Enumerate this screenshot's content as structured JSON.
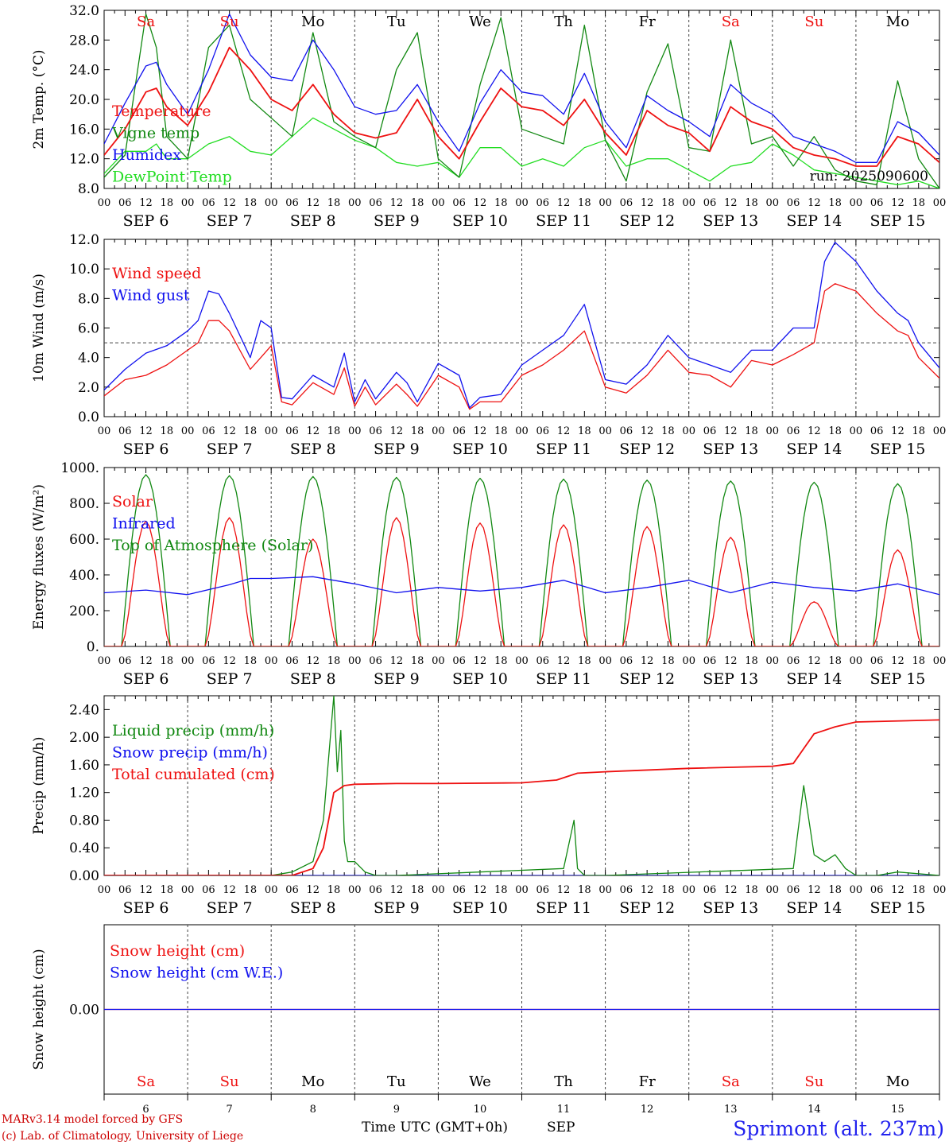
{
  "run_label": "run: 2025090600",
  "footer": {
    "model": "MARv3.14 model forced by GFS",
    "copyright": "(c) Lab. of Climatology, University of Liege",
    "xlabel": "Time UTC (GMT+0h)",
    "month": "SEP",
    "station": "Sprimont (alt. 237m)"
  },
  "days": [
    {
      "abbr": "Sa",
      "date": "SEP  6",
      "num": "6",
      "weekend": true
    },
    {
      "abbr": "Su",
      "date": "SEP  7",
      "num": "7",
      "weekend": true
    },
    {
      "abbr": "Mo",
      "date": "SEP  8",
      "num": "8",
      "weekend": false
    },
    {
      "abbr": "Tu",
      "date": "SEP  9",
      "num": "9",
      "weekend": false
    },
    {
      "abbr": "We",
      "date": "SEP 10",
      "num": "10",
      "weekend": false
    },
    {
      "abbr": "Th",
      "date": "SEP 11",
      "num": "11",
      "weekend": false
    },
    {
      "abbr": "Fr",
      "date": "SEP 12",
      "num": "12",
      "weekend": false
    },
    {
      "abbr": "Sa",
      "date": "SEP 13",
      "num": "13",
      "weekend": true
    },
    {
      "abbr": "Su",
      "date": "SEP 14",
      "num": "14",
      "weekend": true
    },
    {
      "abbr": "Mo",
      "date": "SEP 15",
      "num": "15",
      "weekend": false
    }
  ],
  "hour_labels": [
    "00",
    "06",
    "12",
    "18"
  ],
  "colors": {
    "red": "#ee1111",
    "green": "#118811",
    "blue": "#1111ee",
    "light_green": "#22dd22",
    "weekend": "#ee1111",
    "weekday": "#000000",
    "station": "#2222ee",
    "footer_red": "#cc0000"
  },
  "chart_data": [
    {
      "type": "line",
      "ylabel": "2m Temp. (°C)",
      "ylim": [
        8,
        32
      ],
      "yticks": [
        "8.0",
        "12.0",
        "16.0",
        "20.0",
        "24.0",
        "28.0",
        "32.0"
      ],
      "xlim_hours": [
        0,
        240
      ],
      "series": [
        {
          "name": "Temperature",
          "color": "#ee1111",
          "x": [
            0,
            6,
            12,
            15,
            18,
            24,
            30,
            36,
            42,
            48,
            54,
            60,
            66,
            72,
            78,
            84,
            90,
            96,
            102,
            108,
            114,
            120,
            126,
            132,
            138,
            144,
            150,
            156,
            162,
            168,
            174,
            180,
            186,
            192,
            198,
            204,
            210,
            216,
            222,
            228,
            234,
            240
          ],
          "y": [
            12.5,
            16.0,
            21.0,
            21.5,
            19.0,
            16.5,
            21.0,
            27.0,
            24.0,
            20.0,
            18.5,
            22.0,
            18.0,
            15.5,
            14.8,
            15.5,
            20.0,
            15.0,
            12.0,
            17.0,
            21.5,
            19.0,
            18.5,
            16.5,
            20.0,
            15.5,
            12.5,
            18.5,
            16.5,
            15.5,
            13.0,
            19.0,
            17.0,
            16.0,
            13.5,
            12.5,
            12.0,
            11.0,
            11.0,
            15.0,
            14.0,
            11.5
          ]
        },
        {
          "name": "Vigne temp",
          "color": "#118811",
          "x": [
            0,
            6,
            12,
            15,
            18,
            24,
            30,
            36,
            42,
            48,
            54,
            60,
            66,
            72,
            78,
            84,
            90,
            96,
            102,
            108,
            114,
            120,
            126,
            132,
            138,
            144,
            150,
            156,
            162,
            168,
            174,
            180,
            186,
            192,
            198,
            204,
            210,
            216,
            222,
            228,
            234,
            240
          ],
          "y": [
            9.5,
            12.5,
            31.5,
            27.0,
            15.0,
            12.0,
            27.0,
            30.0,
            20.0,
            17.5,
            15.0,
            29.0,
            17.0,
            15.0,
            13.5,
            24.0,
            29.0,
            12.0,
            9.5,
            22.0,
            31.0,
            16.0,
            15.0,
            14.0,
            30.0,
            14.5,
            9.0,
            21.0,
            27.5,
            13.5,
            13.0,
            28.0,
            14.0,
            15.0,
            11.0,
            15.0,
            10.5,
            9.0,
            8.5,
            22.5,
            12.0,
            8.0
          ]
        },
        {
          "name": "Humidex",
          "color": "#1111ee",
          "x": [
            0,
            6,
            12,
            15,
            18,
            24,
            30,
            36,
            42,
            48,
            54,
            60,
            66,
            72,
            78,
            84,
            90,
            96,
            102,
            108,
            114,
            120,
            126,
            132,
            138,
            144,
            150,
            156,
            162,
            168,
            174,
            180,
            186,
            192,
            198,
            204,
            210,
            216,
            222,
            228,
            234,
            240
          ],
          "y": [
            14.0,
            19.5,
            24.5,
            25.0,
            22.0,
            18.0,
            24.0,
            31.5,
            26.0,
            23.0,
            22.5,
            28.0,
            24.0,
            19.0,
            18.0,
            18.5,
            22.0,
            17.0,
            13.0,
            19.5,
            24.0,
            21.0,
            20.5,
            18.0,
            23.5,
            17.0,
            13.5,
            20.5,
            18.5,
            17.0,
            15.0,
            22.0,
            19.5,
            18.0,
            15.0,
            14.0,
            13.0,
            11.5,
            11.5,
            17.0,
            15.5,
            12.5
          ]
        },
        {
          "name": "DewPoint Temp",
          "color": "#22dd22",
          "x": [
            0,
            6,
            12,
            15,
            18,
            24,
            30,
            36,
            42,
            48,
            54,
            60,
            66,
            72,
            78,
            84,
            90,
            96,
            102,
            108,
            114,
            120,
            126,
            132,
            138,
            144,
            150,
            156,
            162,
            168,
            174,
            180,
            186,
            192,
            198,
            204,
            210,
            216,
            222,
            228,
            234,
            240
          ],
          "y": [
            10.0,
            13.0,
            13.0,
            14.0,
            12.0,
            12.0,
            14.0,
            15.0,
            13.0,
            12.5,
            15.0,
            17.5,
            16.0,
            14.5,
            13.5,
            11.5,
            11.0,
            11.5,
            9.5,
            13.5,
            13.5,
            11.0,
            12.0,
            11.0,
            13.5,
            14.5,
            11.0,
            12.0,
            12.0,
            10.5,
            9.0,
            11.0,
            11.5,
            14.0,
            12.5,
            10.5,
            10.0,
            9.5,
            9.0,
            8.5,
            9.0,
            8.0
          ]
        }
      ]
    },
    {
      "type": "line",
      "ylabel": "10m Wind (m/s)",
      "ylim": [
        0,
        12
      ],
      "yticks": [
        "0.0",
        "2.0",
        "4.0",
        "6.0",
        "8.0",
        "10.0",
        "12.0"
      ],
      "hline": 5,
      "xlim_hours": [
        0,
        240
      ],
      "series": [
        {
          "name": "Wind speed",
          "color": "#ee1111",
          "x": [
            0,
            6,
            12,
            18,
            24,
            27,
            30,
            33,
            36,
            42,
            45,
            48,
            51,
            54,
            60,
            66,
            69,
            72,
            75,
            78,
            84,
            87,
            90,
            96,
            102,
            105,
            108,
            114,
            120,
            126,
            132,
            138,
            144,
            150,
            156,
            162,
            168,
            174,
            180,
            186,
            192,
            198,
            204,
            207,
            210,
            216,
            222,
            228,
            231,
            234,
            240
          ],
          "y": [
            1.4,
            2.5,
            2.8,
            3.5,
            4.5,
            5.0,
            6.5,
            6.5,
            5.8,
            3.2,
            4.0,
            4.8,
            1.0,
            0.8,
            2.3,
            1.5,
            3.3,
            0.7,
            2.0,
            0.8,
            2.2,
            1.5,
            0.7,
            2.8,
            2.0,
            0.5,
            1.0,
            1.0,
            2.8,
            3.5,
            4.5,
            5.8,
            2.0,
            1.6,
            2.8,
            4.5,
            3.0,
            2.8,
            2.0,
            3.8,
            3.5,
            4.2,
            5.0,
            8.5,
            9.0,
            8.5,
            7.0,
            5.8,
            5.5,
            4.0,
            2.6
          ]
        },
        {
          "name": "Wind gust",
          "color": "#1111ee",
          "x": [
            0,
            6,
            12,
            18,
            24,
            27,
            30,
            33,
            36,
            42,
            45,
            48,
            51,
            54,
            60,
            66,
            69,
            72,
            75,
            78,
            84,
            87,
            90,
            96,
            102,
            105,
            108,
            114,
            120,
            126,
            132,
            138,
            144,
            150,
            156,
            162,
            168,
            174,
            180,
            186,
            192,
            198,
            204,
            207,
            210,
            216,
            222,
            228,
            231,
            234,
            240
          ],
          "y": [
            1.8,
            3.2,
            4.3,
            4.8,
            5.8,
            6.5,
            8.5,
            8.3,
            7.0,
            4.0,
            6.5,
            6.0,
            1.3,
            1.2,
            2.8,
            2.0,
            4.3,
            1.0,
            2.5,
            1.2,
            3.0,
            2.3,
            1.0,
            3.6,
            2.8,
            0.6,
            1.3,
            1.5,
            3.5,
            4.5,
            5.5,
            7.6,
            2.5,
            2.2,
            3.5,
            5.5,
            4.0,
            3.5,
            3.0,
            4.5,
            4.5,
            6.0,
            6.0,
            10.5,
            11.8,
            10.5,
            8.5,
            7.0,
            6.5,
            5.0,
            3.3
          ]
        }
      ]
    },
    {
      "type": "line",
      "ylabel": "Energy fluxes (W/m²)",
      "ylim": [
        0,
        1000
      ],
      "yticks": [
        "0.",
        "200.",
        "400.",
        "600.",
        "800.",
        "1000."
      ],
      "xlim_hours": [
        0,
        240
      ],
      "diurnal": true,
      "series": [
        {
          "name": "Solar",
          "color": "#ee1111",
          "day_peaks": [
            700,
            720,
            600,
            720,
            690,
            680,
            670,
            610,
            250,
            540
          ]
        },
        {
          "name": "Infrared",
          "color": "#1111ee",
          "x": [
            0,
            12,
            24,
            36,
            42,
            48,
            60,
            72,
            84,
            96,
            108,
            120,
            132,
            144,
            156,
            168,
            180,
            192,
            204,
            216,
            228,
            240
          ],
          "y": [
            300,
            315,
            290,
            345,
            380,
            380,
            390,
            350,
            300,
            330,
            310,
            330,
            370,
            300,
            330,
            370,
            300,
            360,
            330,
            310,
            350,
            290
          ]
        },
        {
          "name": "Top of Atmosphere (Solar)",
          "color": "#118811",
          "day_peaks": [
            960,
            955,
            950,
            945,
            940,
            935,
            930,
            925,
            918,
            910
          ]
        }
      ]
    },
    {
      "type": "line",
      "ylabel": "Precip (mm/h)",
      "ylim": [
        0,
        2.6
      ],
      "yticks": [
        "0.00",
        "0.40",
        "0.80",
        "1.20",
        "1.60",
        "2.00",
        "2.40"
      ],
      "xlim_hours": [
        0,
        240
      ],
      "series": [
        {
          "name": "Liquid precip (mm/h)",
          "color": "#118811",
          "x": [
            0,
            48,
            54,
            60,
            63,
            66,
            67,
            68,
            69,
            70,
            72,
            75,
            78,
            84,
            132,
            135,
            136,
            138,
            144,
            198,
            201,
            204,
            207,
            210,
            213,
            216,
            222,
            228,
            240
          ],
          "y": [
            0,
            0,
            0.05,
            0.2,
            0.8,
            2.6,
            1.5,
            2.1,
            0.5,
            0.2,
            0.2,
            0.05,
            0,
            0,
            0.1,
            0.8,
            0.1,
            0,
            0,
            0.1,
            1.3,
            0.3,
            0.2,
            0.3,
            0.1,
            0,
            0,
            0.05,
            0
          ]
        },
        {
          "name": "Snow precip (mm/h)",
          "color": "#1111ee",
          "x": [
            0,
            240
          ],
          "y": [
            0,
            0
          ]
        },
        {
          "name": "Total cumulated (cm)",
          "color": "#ee1111",
          "x": [
            0,
            54,
            60,
            63,
            66,
            69,
            72,
            84,
            96,
            120,
            130,
            136,
            144,
            168,
            192,
            198,
            204,
            210,
            216,
            240
          ],
          "y": [
            0,
            0,
            0.1,
            0.4,
            1.2,
            1.3,
            1.32,
            1.33,
            1.33,
            1.34,
            1.38,
            1.48,
            1.5,
            1.55,
            1.58,
            1.62,
            2.05,
            2.15,
            2.22,
            2.25
          ]
        }
      ]
    },
    {
      "type": "line",
      "ylabel": "Snow height (cm)",
      "ylim": [
        -1,
        1
      ],
      "yticks": [
        "0.00"
      ],
      "xlim_hours": [
        0,
        240
      ],
      "series": [
        {
          "name": "Snow height (cm)",
          "color": "#ee1111",
          "x": [
            0,
            240
          ],
          "y": [
            0,
            0
          ]
        },
        {
          "name": "Snow height (cm W.E.)",
          "color": "#1111ee",
          "x": [
            0,
            240
          ],
          "y": [
            0,
            0
          ]
        }
      ]
    }
  ]
}
